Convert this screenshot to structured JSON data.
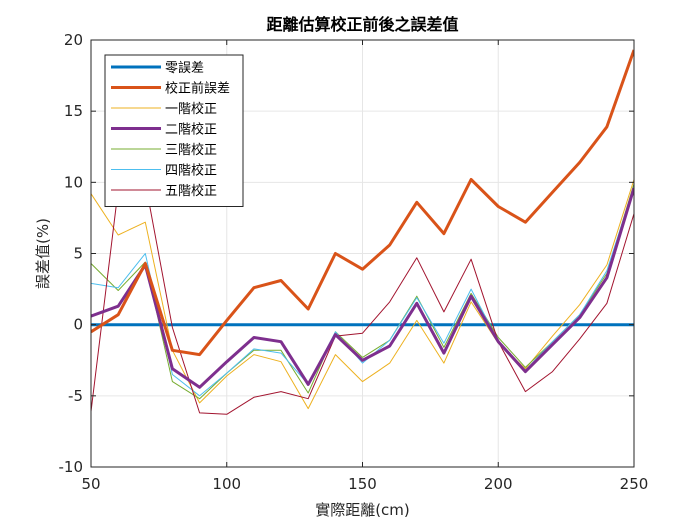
{
  "chart_data": {
    "type": "line",
    "title": "距離估算校正前後之誤差值",
    "xlabel": "實際距離(cm)",
    "ylabel": "誤差值(%)",
    "xlim": [
      50,
      250
    ],
    "ylim": [
      -10,
      20
    ],
    "xticks": [
      "50",
      "100",
      "150",
      "200",
      "250"
    ],
    "yticks": [
      "-10",
      "-5",
      "0",
      "5",
      "10",
      "15",
      "20"
    ],
    "grid": true,
    "legend_position": "top-left",
    "x": [
      50,
      60,
      70,
      80,
      90,
      100,
      110,
      120,
      130,
      140,
      150,
      160,
      170,
      180,
      190,
      200,
      210,
      220,
      230,
      240,
      250
    ],
    "series": [
      {
        "name": "零誤差",
        "color": "#0072BD",
        "width": 3,
        "values": [
          0,
          0,
          0,
          0,
          0,
          0,
          0,
          0,
          0,
          0,
          0,
          0,
          0,
          0,
          0,
          0,
          0,
          0,
          0,
          0,
          0
        ]
      },
      {
        "name": "校正前誤差",
        "color": "#D95319",
        "width": 3,
        "values": [
          -0.5,
          0.7,
          4.3,
          -1.8,
          -2.1,
          0.3,
          2.6,
          3.1,
          1.1,
          5.0,
          3.9,
          5.6,
          8.6,
          6.4,
          10.2,
          8.3,
          7.2,
          9.3,
          11.4,
          13.9,
          19.3
        ]
      },
      {
        "name": "一階校正",
        "color": "#EDB120",
        "width": 1,
        "values": [
          9.2,
          6.3,
          7.2,
          -1.8,
          -5.5,
          -3.6,
          -2.1,
          -2.6,
          -5.9,
          -2.1,
          -4.0,
          -2.7,
          0.3,
          -2.7,
          1.6,
          -1.3,
          -3.1,
          -0.8,
          1.4,
          4.2,
          10.2
        ]
      },
      {
        "name": "二階校正",
        "color": "#7E2F8E",
        "width": 3,
        "values": [
          0.6,
          1.3,
          4.2,
          -3.1,
          -4.4,
          -2.6,
          -0.9,
          -1.2,
          -4.2,
          -0.7,
          -2.5,
          -1.5,
          1.5,
          -2.0,
          2.0,
          -1.2,
          -3.3,
          -1.4,
          0.5,
          3.3,
          9.6
        ]
      },
      {
        "name": "三階校正",
        "color": "#77AC30",
        "width": 1,
        "values": [
          4.3,
          2.4,
          4.4,
          -4.0,
          -5.2,
          -3.4,
          -1.8,
          -1.8,
          -4.8,
          -0.5,
          -2.3,
          -1.1,
          2.0,
          -1.6,
          2.2,
          -0.9,
          -3.0,
          -1.2,
          0.7,
          3.6,
          9.9
        ]
      },
      {
        "name": "四階校正",
        "color": "#4DBEEE",
        "width": 1,
        "values": [
          2.9,
          2.6,
          5.0,
          -3.5,
          -5.0,
          -3.4,
          -1.7,
          -2.0,
          -4.2,
          -0.5,
          -2.7,
          -1.1,
          1.9,
          -1.3,
          2.5,
          -1.2,
          -3.2,
          -1.2,
          0.7,
          3.8,
          9.7
        ]
      },
      {
        "name": "五階校正",
        "color": "#A2142F",
        "width": 1,
        "values": [
          -6.1,
          9.5,
          10.0,
          -0.2,
          -6.2,
          -6.3,
          -5.1,
          -4.7,
          -5.2,
          -0.8,
          -0.6,
          1.6,
          4.7,
          0.9,
          4.6,
          -1.2,
          -4.7,
          -3.3,
          -1.0,
          1.5,
          7.8
        ]
      }
    ]
  }
}
